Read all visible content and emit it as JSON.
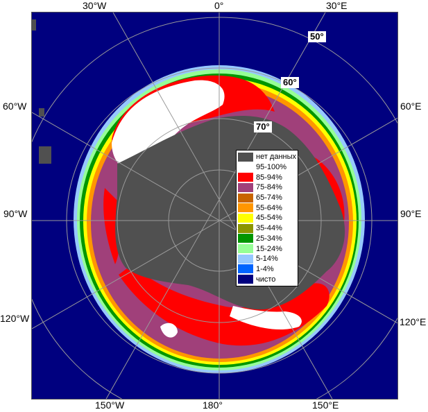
{
  "map": {
    "longitude_labels": {
      "lon_30w": "30°W",
      "lon_0": "0°",
      "lon_30e": "30°E",
      "lon_60w": "60°W",
      "lon_60e": "60°E",
      "lon_90w": "90°W",
      "lon_90e": "90°E",
      "lon_120w": "120°W",
      "lon_120e": "120°E",
      "lon_150w": "150°W",
      "lon_180": "180°",
      "lon_150e": "150°E"
    },
    "latitude_labels": {
      "lat_50": "50°",
      "lat_60": "60°",
      "lat_70": "70°"
    },
    "colors": {
      "ocean": "#00007f",
      "land": "#505050",
      "grid": "#9a9a9a"
    }
  },
  "legend": {
    "items": [
      {
        "label": "нет данных",
        "color": "#505050"
      },
      {
        "label": "95-100%",
        "color": "#ffffff"
      },
      {
        "label": "85-94%",
        "color": "#ff0000"
      },
      {
        "label": "75-84%",
        "color": "#a0407a"
      },
      {
        "label": "65-74%",
        "color": "#c86400"
      },
      {
        "label": "55-64%",
        "color": "#ff9600"
      },
      {
        "label": "45-54%",
        "color": "#ffff00"
      },
      {
        "label": "35-44%",
        "color": "#8c9600"
      },
      {
        "label": "25-34%",
        "color": "#009600"
      },
      {
        "label": "15-24%",
        "color": "#96ff96"
      },
      {
        "label": "5-14%",
        "color": "#96c8ff"
      },
      {
        "label": "1-4%",
        "color": "#0064ff"
      },
      {
        "label": "чисто",
        "color": "#00007f"
      }
    ]
  }
}
